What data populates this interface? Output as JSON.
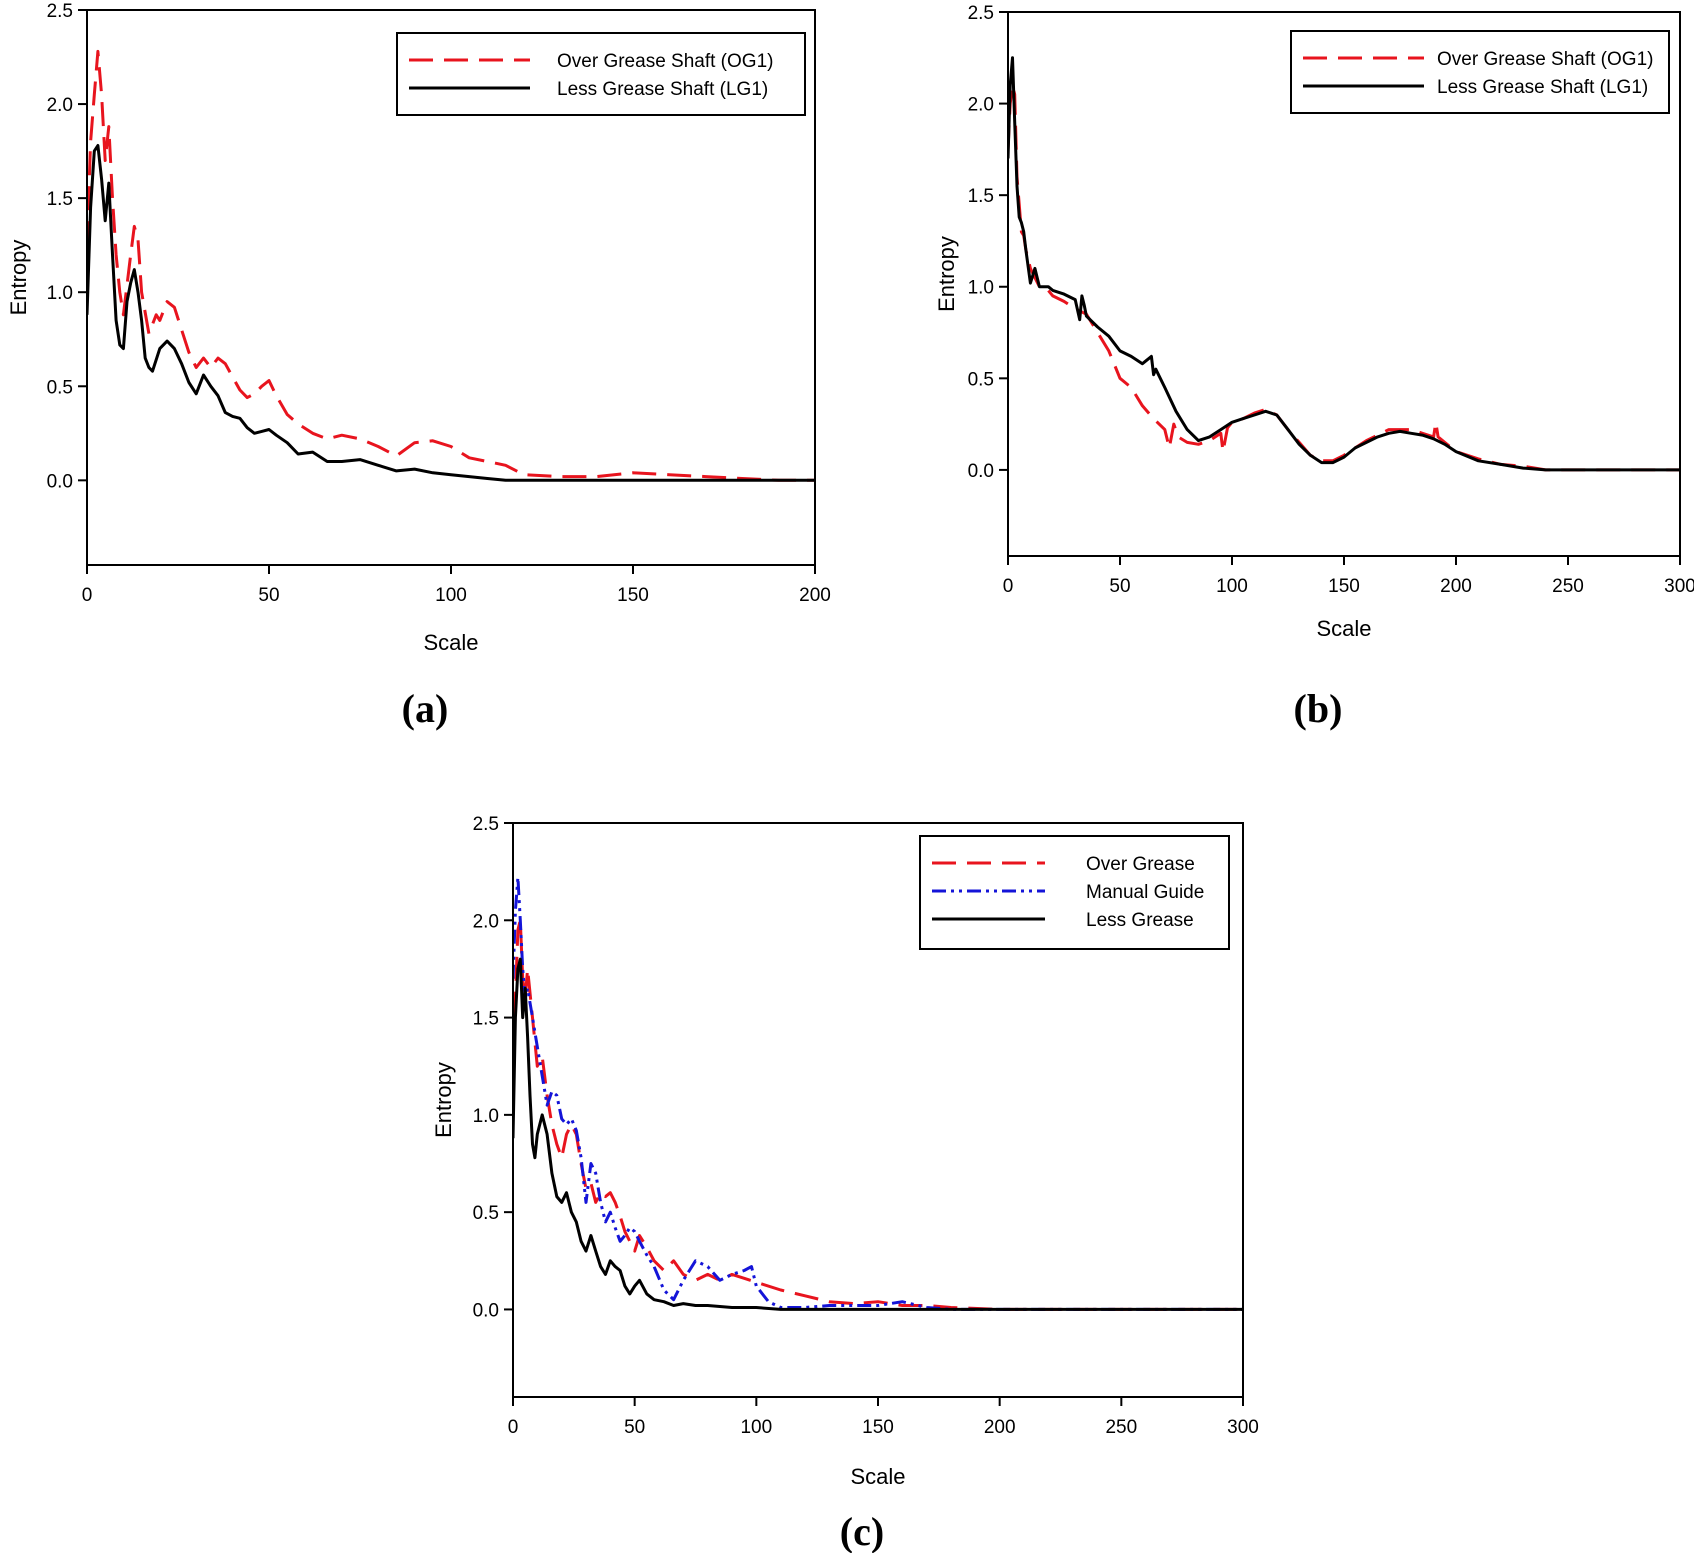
{
  "colors": {
    "over": "#e8141e",
    "less": "#000000",
    "manual": "#1414d8"
  },
  "chart_data": [
    {
      "id": "a",
      "type": "line",
      "panel_label": "(a)",
      "xlabel": "Scale",
      "ylabel": "Entropy",
      "xlim": [
        0,
        200
      ],
      "ylim": [
        -0.45,
        2.5
      ],
      "xticks": [
        0,
        50,
        100,
        150,
        200
      ],
      "yticks": [
        0.0,
        0.5,
        1.0,
        1.5,
        2.0,
        2.5
      ],
      "xtick_labels": [
        "0",
        "50",
        "100",
        "150",
        "200"
      ],
      "ytick_labels": [
        "0.0",
        "0.5",
        "1.0",
        "1.5",
        "2.0",
        "2.5"
      ],
      "legend_position": "top-right",
      "grid": false,
      "series": [
        {
          "name": "Over Grease Shaft (OG1)",
          "style": "dashed",
          "color_key": "over",
          "x": [
            0,
            1,
            2,
            3,
            4,
            5,
            6,
            7,
            8,
            9,
            10,
            12,
            13,
            14,
            15,
            17,
            19,
            20,
            22,
            24,
            26,
            28,
            30,
            32,
            34,
            36,
            38,
            40,
            42,
            44,
            46,
            48,
            50,
            52,
            55,
            58,
            62,
            66,
            70,
            75,
            80,
            85,
            90,
            95,
            100,
            105,
            110,
            115,
            120,
            130,
            140,
            150,
            160,
            170,
            180,
            190,
            200
          ],
          "y": [
            1.25,
            1.8,
            2.05,
            2.28,
            2.05,
            1.7,
            1.88,
            1.5,
            1.2,
            1.0,
            0.88,
            1.2,
            1.35,
            1.28,
            1.0,
            0.78,
            0.88,
            0.85,
            0.95,
            0.92,
            0.8,
            0.68,
            0.6,
            0.65,
            0.6,
            0.65,
            0.62,
            0.55,
            0.48,
            0.44,
            0.46,
            0.5,
            0.53,
            0.45,
            0.35,
            0.3,
            0.25,
            0.22,
            0.24,
            0.22,
            0.18,
            0.13,
            0.2,
            0.21,
            0.18,
            0.12,
            0.1,
            0.08,
            0.03,
            0.02,
            0.02,
            0.04,
            0.03,
            0.02,
            0.01,
            0.0,
            0.0
          ]
        },
        {
          "name": "Less Grease Shaft (LG1)",
          "style": "solid",
          "color_key": "less",
          "x": [
            0,
            1,
            2,
            3,
            4,
            5,
            6,
            7,
            8,
            9,
            10,
            11,
            12,
            13,
            14,
            15,
            16,
            17,
            18,
            20,
            22,
            24,
            26,
            28,
            30,
            32,
            34,
            36,
            38,
            40,
            42,
            44,
            46,
            48,
            50,
            52,
            55,
            58,
            62,
            66,
            70,
            75,
            80,
            85,
            90,
            95,
            100,
            105,
            110,
            115,
            120,
            130,
            150,
            200
          ],
          "y": [
            0.88,
            1.45,
            1.75,
            1.78,
            1.6,
            1.38,
            1.58,
            1.2,
            0.85,
            0.72,
            0.7,
            0.95,
            1.05,
            1.12,
            1.0,
            0.85,
            0.65,
            0.6,
            0.58,
            0.7,
            0.74,
            0.7,
            0.62,
            0.52,
            0.46,
            0.56,
            0.5,
            0.45,
            0.36,
            0.34,
            0.33,
            0.28,
            0.25,
            0.26,
            0.27,
            0.24,
            0.2,
            0.14,
            0.15,
            0.1,
            0.1,
            0.11,
            0.08,
            0.05,
            0.06,
            0.04,
            0.03,
            0.02,
            0.01,
            0.0,
            0.0,
            0.0,
            0.0,
            0.0
          ]
        }
      ]
    },
    {
      "id": "b",
      "type": "line",
      "panel_label": "(b)",
      "xlabel": "Scale",
      "ylabel": "Entropy",
      "xlim": [
        0,
        300
      ],
      "ylim": [
        -0.47,
        2.5
      ],
      "xticks": [
        0,
        50,
        100,
        150,
        200,
        250,
        300
      ],
      "yticks": [
        0.0,
        0.5,
        1.0,
        1.5,
        2.0,
        2.5
      ],
      "xtick_labels": [
        "0",
        "50",
        "100",
        "150",
        "200",
        "250",
        "300"
      ],
      "ytick_labels": [
        "0.0",
        "0.5",
        "1.0",
        "1.5",
        "2.0",
        "2.5"
      ],
      "legend_position": "top-right",
      "grid": false,
      "series": [
        {
          "name": "Over Grease Shaft (OG1)",
          "style": "dashed",
          "color_key": "over",
          "x": [
            0,
            1,
            2,
            3,
            4,
            5,
            6,
            7,
            8,
            10,
            12,
            14,
            16,
            18,
            20,
            25,
            30,
            35,
            40,
            45,
            50,
            55,
            60,
            65,
            70,
            72,
            74,
            76,
            80,
            85,
            90,
            95,
            96,
            98,
            100,
            105,
            110,
            115,
            120,
            125,
            130,
            135,
            140,
            145,
            150,
            155,
            160,
            165,
            170,
            175,
            180,
            185,
            190,
            191,
            192,
            195,
            200,
            210,
            220,
            230,
            240,
            250,
            300
          ],
          "y": [
            1.75,
            2.0,
            2.1,
            2.05,
            1.6,
            1.45,
            1.3,
            1.28,
            1.2,
            1.1,
            1.05,
            1.0,
            1.0,
            0.98,
            0.95,
            0.92,
            0.88,
            0.85,
            0.75,
            0.65,
            0.5,
            0.45,
            0.35,
            0.28,
            0.22,
            0.12,
            0.25,
            0.18,
            0.15,
            0.14,
            0.16,
            0.2,
            0.1,
            0.23,
            0.26,
            0.28,
            0.31,
            0.33,
            0.3,
            0.22,
            0.15,
            0.08,
            0.05,
            0.05,
            0.08,
            0.12,
            0.16,
            0.19,
            0.22,
            0.22,
            0.22,
            0.2,
            0.18,
            0.26,
            0.18,
            0.15,
            0.1,
            0.06,
            0.03,
            0.02,
            0.0,
            0.0,
            0.0
          ]
        },
        {
          "name": "Less Grease Shaft (LG1)",
          "style": "solid",
          "color_key": "less",
          "x": [
            0,
            1,
            2,
            3,
            4,
            5,
            6,
            7,
            8,
            10,
            12,
            14,
            16,
            18,
            20,
            25,
            30,
            32,
            33,
            34,
            35,
            40,
            45,
            50,
            55,
            60,
            64,
            65,
            66,
            70,
            75,
            80,
            85,
            90,
            95,
            100,
            105,
            110,
            115,
            120,
            125,
            130,
            135,
            140,
            145,
            150,
            155,
            160,
            165,
            170,
            175,
            180,
            185,
            190,
            195,
            200,
            210,
            220,
            230,
            240,
            250,
            300
          ],
          "y": [
            1.7,
            2.1,
            2.25,
            1.9,
            1.55,
            1.38,
            1.35,
            1.3,
            1.2,
            1.02,
            1.1,
            1.0,
            1.0,
            1.0,
            0.98,
            0.96,
            0.93,
            0.82,
            0.95,
            0.9,
            0.84,
            0.78,
            0.73,
            0.65,
            0.62,
            0.58,
            0.62,
            0.52,
            0.55,
            0.45,
            0.32,
            0.22,
            0.16,
            0.18,
            0.22,
            0.26,
            0.28,
            0.3,
            0.32,
            0.3,
            0.22,
            0.14,
            0.08,
            0.04,
            0.04,
            0.07,
            0.12,
            0.15,
            0.18,
            0.2,
            0.21,
            0.2,
            0.19,
            0.17,
            0.14,
            0.1,
            0.05,
            0.03,
            0.01,
            0.0,
            0.0,
            0.0
          ]
        }
      ]
    },
    {
      "id": "c",
      "type": "line",
      "panel_label": "(c)",
      "xlabel": "Scale",
      "ylabel": "Entropy",
      "xlim": [
        0,
        300
      ],
      "ylim": [
        -0.45,
        2.5
      ],
      "xticks": [
        0,
        50,
        100,
        150,
        200,
        250,
        300
      ],
      "yticks": [
        0.0,
        0.5,
        1.0,
        1.5,
        2.0,
        2.5
      ],
      "xtick_labels": [
        "0",
        "50",
        "100",
        "150",
        "200",
        "250",
        "300"
      ],
      "ytick_labels": [
        "0.0",
        "0.5",
        "1.0",
        "1.5",
        "2.0",
        "2.5"
      ],
      "legend_position": "top-right",
      "grid": false,
      "series": [
        {
          "name": "Over Grease",
          "style": "dashed",
          "color_key": "over",
          "x": [
            0,
            1,
            2,
            3,
            4,
            5,
            6,
            8,
            10,
            12,
            14,
            16,
            18,
            20,
            22,
            24,
            26,
            28,
            30,
            32,
            34,
            36,
            38,
            40,
            42,
            44,
            46,
            48,
            50,
            52,
            55,
            58,
            62,
            66,
            70,
            75,
            80,
            85,
            90,
            95,
            100,
            110,
            120,
            130,
            140,
            150,
            160,
            170,
            180,
            200,
            300
          ],
          "y": [
            1.15,
            1.6,
            1.95,
            2.0,
            1.7,
            1.6,
            1.75,
            1.5,
            1.25,
            1.3,
            1.1,
            0.95,
            0.85,
            0.78,
            0.9,
            0.95,
            0.9,
            0.75,
            0.62,
            0.65,
            0.55,
            0.6,
            0.58,
            0.6,
            0.55,
            0.48,
            0.4,
            0.35,
            0.3,
            0.38,
            0.32,
            0.25,
            0.2,
            0.25,
            0.18,
            0.15,
            0.18,
            0.15,
            0.18,
            0.16,
            0.14,
            0.1,
            0.07,
            0.04,
            0.03,
            0.04,
            0.02,
            0.02,
            0.01,
            0.0,
            0.0
          ]
        },
        {
          "name": "Manual Guide",
          "style": "dashdotdot",
          "color_key": "manual",
          "x": [
            0,
            1,
            2,
            3,
            4,
            5,
            6,
            8,
            10,
            12,
            14,
            16,
            18,
            20,
            22,
            24,
            26,
            28,
            30,
            32,
            34,
            36,
            38,
            40,
            42,
            44,
            46,
            48,
            50,
            52,
            55,
            58,
            62,
            66,
            70,
            75,
            80,
            85,
            90,
            95,
            98,
            100,
            105,
            110,
            120,
            130,
            140,
            150,
            160,
            170,
            180,
            200,
            300
          ],
          "y": [
            1.7,
            2.05,
            2.22,
            2.0,
            1.75,
            1.6,
            1.65,
            1.5,
            1.35,
            1.2,
            1.05,
            1.12,
            1.1,
            0.98,
            0.95,
            0.98,
            0.92,
            0.78,
            0.55,
            0.75,
            0.7,
            0.55,
            0.45,
            0.5,
            0.42,
            0.35,
            0.38,
            0.42,
            0.4,
            0.35,
            0.28,
            0.22,
            0.1,
            0.05,
            0.15,
            0.25,
            0.22,
            0.15,
            0.18,
            0.2,
            0.22,
            0.12,
            0.04,
            0.01,
            0.01,
            0.02,
            0.02,
            0.02,
            0.04,
            0.01,
            0.0,
            0.0,
            0.0
          ]
        },
        {
          "name": "Less Grease",
          "style": "solid",
          "color_key": "less",
          "x": [
            0,
            1,
            2,
            3,
            4,
            5,
            6,
            7,
            8,
            9,
            10,
            12,
            14,
            16,
            18,
            20,
            22,
            24,
            26,
            28,
            30,
            32,
            34,
            36,
            38,
            40,
            42,
            44,
            46,
            48,
            50,
            52,
            55,
            58,
            62,
            66,
            70,
            75,
            80,
            90,
            100,
            110,
            120,
            150,
            200,
            300
          ],
          "y": [
            0.88,
            1.5,
            1.75,
            1.8,
            1.5,
            1.65,
            1.4,
            1.1,
            0.85,
            0.78,
            0.9,
            1.0,
            0.9,
            0.7,
            0.58,
            0.55,
            0.6,
            0.5,
            0.45,
            0.35,
            0.3,
            0.38,
            0.3,
            0.22,
            0.18,
            0.25,
            0.22,
            0.2,
            0.12,
            0.08,
            0.12,
            0.15,
            0.08,
            0.05,
            0.04,
            0.02,
            0.03,
            0.02,
            0.02,
            0.01,
            0.01,
            0.0,
            0.0,
            0.0,
            0.0,
            0.0
          ]
        }
      ]
    }
  ]
}
